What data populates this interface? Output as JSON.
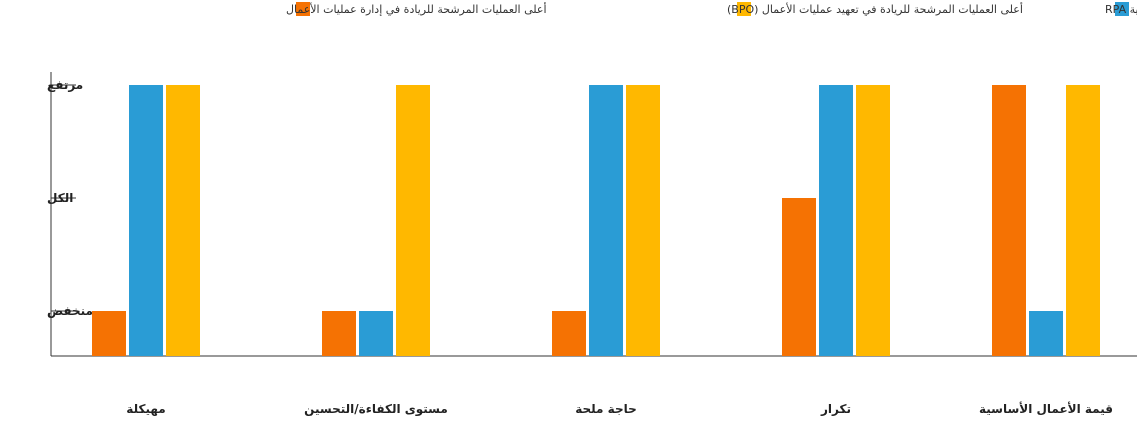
{
  "chart_data": {
    "type": "bar",
    "title": "",
    "xlabel": "",
    "ylabel": "",
    "legend_position": "top",
    "grid": false,
    "y_levels": [
      "منخفض",
      "الكل",
      "مرتفع"
    ],
    "ylim": [
      0,
      3
    ],
    "categories": [
      "مهيكلة",
      "مستوى الكفاءة/التحسين",
      "حاجة ملحة",
      "تكرار",
      "قيمة الأعمال الأساسية"
    ],
    "series": [
      {
        "name": "أعلى العمليات المرشحة للريادة في إدارة عمليات الأعمال",
        "color": "#f57203",
        "values": [
          1,
          1,
          1,
          2,
          3
        ]
      },
      {
        "name": "أعلى العمليات المرشحة للريادة في تقنية RPA",
        "color": "#2a9cd5",
        "values": [
          3,
          1,
          3,
          3,
          1
        ]
      },
      {
        "name": "أعلى العمليات المرشحة للريادة في تعهيد عمليات الأعمال (BPO)",
        "color": "#ffb800",
        "values": [
          3,
          3,
          3,
          3,
          3
        ]
      }
    ]
  }
}
